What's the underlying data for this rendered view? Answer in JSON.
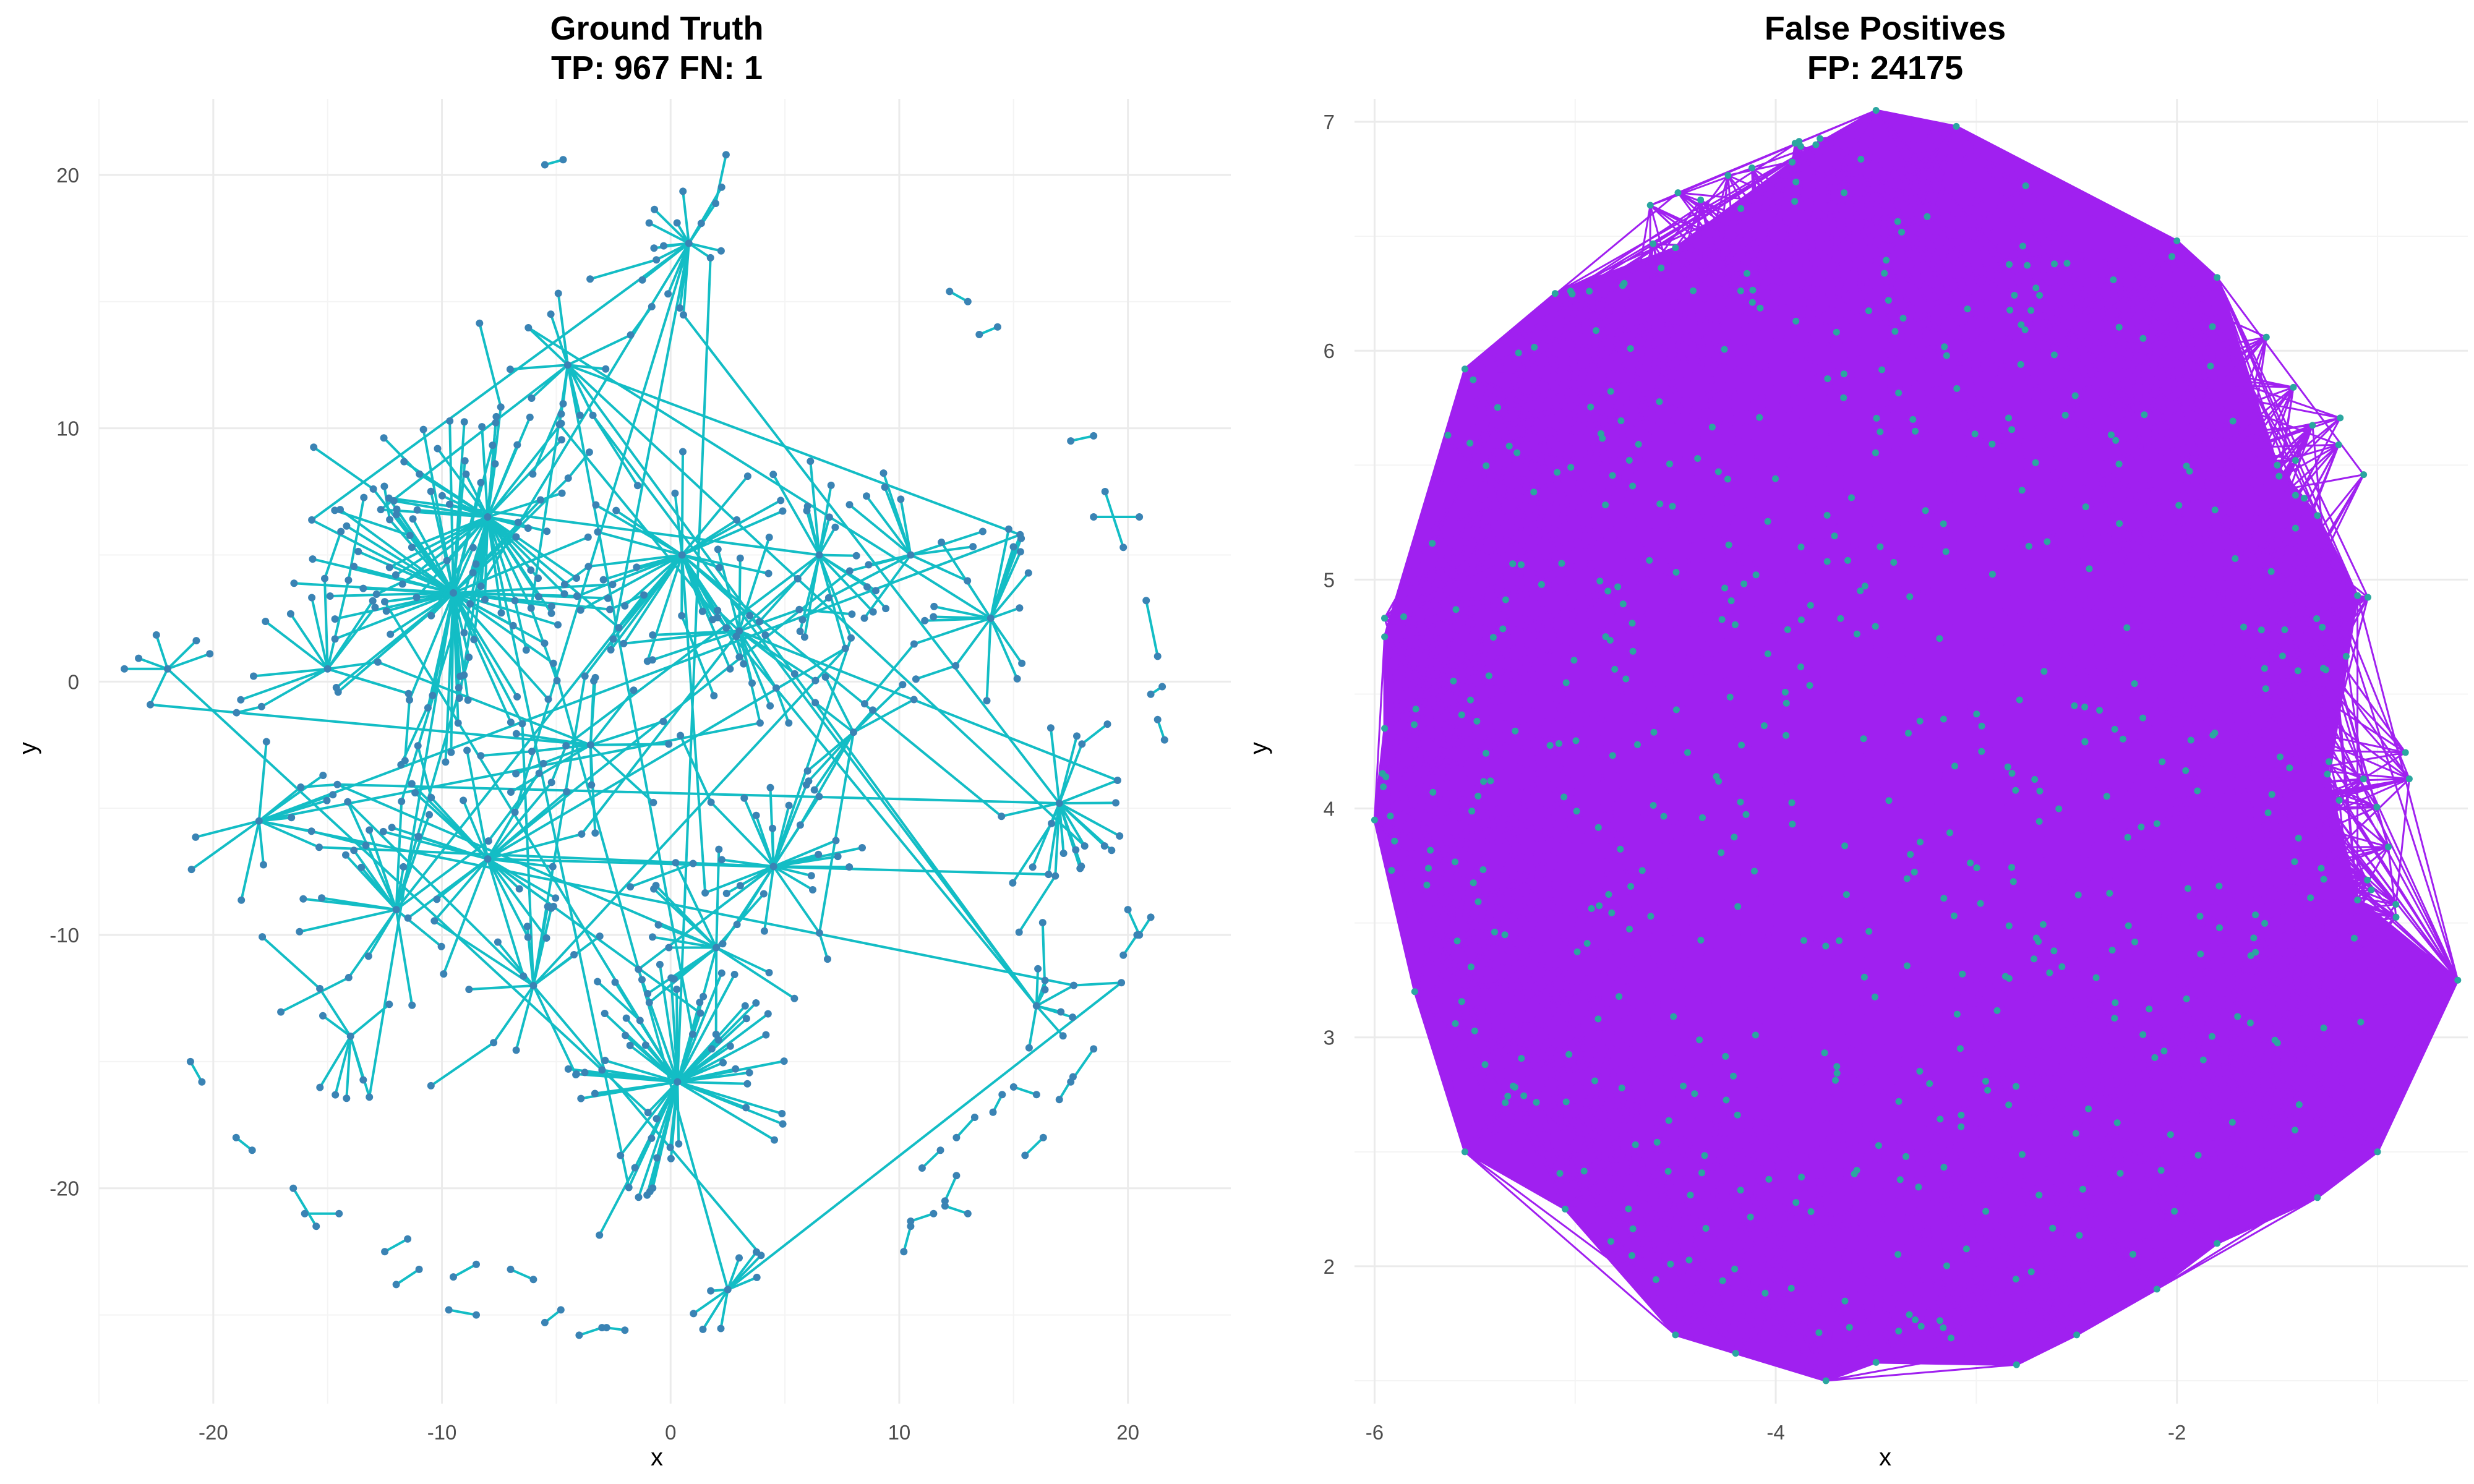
{
  "chart_data": [
    {
      "type": "network",
      "title_line1": "Ground Truth",
      "title_line2": "TP: 967 FN: 1",
      "xlabel": "x",
      "ylabel": "y",
      "xlim": [
        -25,
        24.5
      ],
      "ylim": [
        -28.5,
        23
      ],
      "xticks": [
        -20,
        -10,
        0,
        10,
        20
      ],
      "yticks": [
        20,
        10,
        0,
        -10,
        -20
      ],
      "xtick_labels": [
        "-20",
        "-10",
        "0",
        "10",
        "20"
      ],
      "ytick_labels": [
        "20",
        "10",
        "0",
        "-10",
        "-20"
      ],
      "grid": true,
      "edge_color": "#13bdc5",
      "node_color": "#3a83b4",
      "hubs": [
        {
          "x": -9.5,
          "y": 3.5,
          "n": 60,
          "r": 7
        },
        {
          "x": -8.0,
          "y": 6.5,
          "n": 45,
          "r": 5
        },
        {
          "x": 0.3,
          "y": -15.8,
          "n": 55,
          "r": 5
        },
        {
          "x": 0.5,
          "y": 5.0,
          "n": 30,
          "r": 5
        },
        {
          "x": 4.5,
          "y": -7.3,
          "n": 25,
          "r": 4
        },
        {
          "x": -8.0,
          "y": -7.0,
          "n": 25,
          "r": 5
        },
        {
          "x": 17.0,
          "y": -4.8,
          "n": 18,
          "r": 3
        },
        {
          "x": 0.8,
          "y": 17.3,
          "n": 16,
          "r": 3
        },
        {
          "x": 14.0,
          "y": 2.5,
          "n": 16,
          "r": 4
        },
        {
          "x": -4.5,
          "y": 12.5,
          "n": 12,
          "r": 3
        },
        {
          "x": 6.5,
          "y": 5.0,
          "n": 16,
          "r": 4
        },
        {
          "x": -15.0,
          "y": 0.5,
          "n": 12,
          "r": 4
        },
        {
          "x": -12.0,
          "y": -9.0,
          "n": 16,
          "r": 5
        },
        {
          "x": -18.0,
          "y": -5.5,
          "n": 12,
          "r": 4
        },
        {
          "x": 2.0,
          "y": -10.5,
          "n": 14,
          "r": 4
        },
        {
          "x": 10.5,
          "y": 5.0,
          "n": 12,
          "r": 4
        },
        {
          "x": 2.5,
          "y": -24.0,
          "n": 8,
          "r": 2
        },
        {
          "x": 16.0,
          "y": -12.8,
          "n": 8,
          "r": 2
        },
        {
          "x": -22.0,
          "y": 0.5,
          "n": 6,
          "r": 2
        },
        {
          "x": 3.0,
          "y": 2.0,
          "n": 14,
          "r": 4
        },
        {
          "x": -3.5,
          "y": -2.5,
          "n": 12,
          "r": 4
        },
        {
          "x": 8.0,
          "y": -2.0,
          "n": 8,
          "r": 3
        },
        {
          "x": -6.0,
          "y": -12.0,
          "n": 10,
          "r": 4
        },
        {
          "x": -14.0,
          "y": -14.0,
          "n": 8,
          "r": 3
        }
      ],
      "pairs": [
        [
          -5.5,
          20.4,
          -4.7,
          20.6
        ],
        [
          12.2,
          15.4,
          13.0,
          15.0
        ],
        [
          13.5,
          13.7,
          14.3,
          14.0
        ],
        [
          17.5,
          9.5,
          18.5,
          9.7
        ],
        [
          19.0,
          7.5,
          19.8,
          5.3
        ],
        [
          18.5,
          6.5,
          20.5,
          6.5
        ],
        [
          20.8,
          3.2,
          21.3,
          1.0
        ],
        [
          21.0,
          -0.5,
          21.5,
          -0.2
        ],
        [
          21.3,
          -1.5,
          21.6,
          -2.3
        ],
        [
          20.0,
          -9.0,
          20.5,
          -10.0
        ],
        [
          20.5,
          -10.0,
          21.0,
          -9.3
        ],
        [
          19.8,
          -10.8,
          20.4,
          -10.0
        ],
        [
          17.5,
          -15.8,
          18.5,
          -14.5
        ],
        [
          17.0,
          -16.5,
          17.6,
          -15.6
        ],
        [
          15.0,
          -16.0,
          16.0,
          -16.3
        ],
        [
          15.5,
          -18.7,
          16.3,
          -18.0
        ],
        [
          14.1,
          -17.0,
          14.5,
          -16.3
        ],
        [
          12.5,
          -18.0,
          13.3,
          -17.2
        ],
        [
          11.0,
          -19.2,
          11.8,
          -18.5
        ],
        [
          12.0,
          -20.5,
          12.5,
          -19.5
        ],
        [
          10.5,
          -21.5,
          10.2,
          -22.5
        ],
        [
          10.5,
          -21.3,
          11.5,
          -21.0
        ],
        [
          12.0,
          -20.7,
          13.0,
          -21.0
        ],
        [
          -21.0,
          -15.0,
          -20.5,
          -15.8
        ],
        [
          -19.0,
          -18.0,
          -18.3,
          -18.5
        ],
        [
          -16.0,
          -21.0,
          -14.5,
          -21.0
        ],
        [
          -16.5,
          -20.0,
          -15.5,
          -21.5
        ],
        [
          -12.5,
          -22.5,
          -11.5,
          -22.0
        ],
        [
          -12.0,
          -23.8,
          -11.0,
          -23.2
        ],
        [
          -9.5,
          -23.5,
          -8.5,
          -23.0
        ],
        [
          -7.0,
          -23.2,
          -6.0,
          -23.6
        ],
        [
          -9.7,
          -24.8,
          -8.5,
          -25.0
        ],
        [
          -5.5,
          -25.3,
          -4.8,
          -24.8
        ],
        [
          -4.0,
          -25.8,
          -3.0,
          -25.5
        ],
        [
          -2.8,
          -25.5,
          -2.0,
          -25.6
        ]
      ],
      "cross_links": 60,
      "seed": 7
    },
    {
      "type": "network",
      "title_line1": "False Positives",
      "title_line2": "FP: 24175",
      "xlabel": "x",
      "ylabel": "y",
      "xlim": [
        -6.1,
        -0.55
      ],
      "ylim": [
        1.4,
        7.1
      ],
      "xticks": [
        -6,
        -4,
        -2
      ],
      "yticks": [
        7,
        6,
        5,
        4,
        3,
        2
      ],
      "xtick_labels": [
        "-6",
        "-4",
        "-2"
      ],
      "ytick_labels": [
        "7",
        "6",
        "5",
        "4",
        "3",
        "2"
      ],
      "grid": true,
      "edge_color": "#a020f0",
      "node_color": "#2ba6a0",
      "cloud_center": [
        -3.4,
        4.3
      ],
      "cloud_radius": [
        2.7,
        2.75
      ],
      "outer_nodes": [
        [
          -6.0,
          3.95
        ],
        [
          -5.95,
          4.35
        ],
        [
          -5.95,
          4.75
        ],
        [
          -5.8,
          3.2
        ],
        [
          -5.55,
          2.5
        ],
        [
          -5.55,
          5.92
        ],
        [
          -5.05,
          2.25
        ],
        [
          -5.1,
          6.25
        ],
        [
          -4.5,
          1.7
        ],
        [
          -4.5,
          6.45
        ],
        [
          -3.75,
          1.5
        ],
        [
          -3.8,
          6.9
        ],
        [
          -3.5,
          7.05
        ],
        [
          -3.1,
          6.98
        ],
        [
          -2.8,
          1.57
        ],
        [
          -2.5,
          1.7
        ],
        [
          -2.0,
          6.48
        ],
        [
          -1.8,
          6.32
        ],
        [
          -1.5,
          5.5
        ],
        [
          -1.3,
          5.28
        ],
        [
          -1.1,
          4.93
        ],
        [
          -1.25,
          4.15
        ],
        [
          -1.1,
          3.6
        ],
        [
          -0.6,
          3.25
        ],
        [
          -1.0,
          2.5
        ],
        [
          -1.3,
          2.3
        ],
        [
          -1.8,
          2.1
        ],
        [
          -2.1,
          1.9
        ],
        [
          -3.5,
          1.58
        ],
        [
          -4.2,
          1.62
        ]
      ],
      "inner_nodes": 520,
      "fan_edges": 900,
      "fill_edges": 2200,
      "seed": 11
    }
  ]
}
